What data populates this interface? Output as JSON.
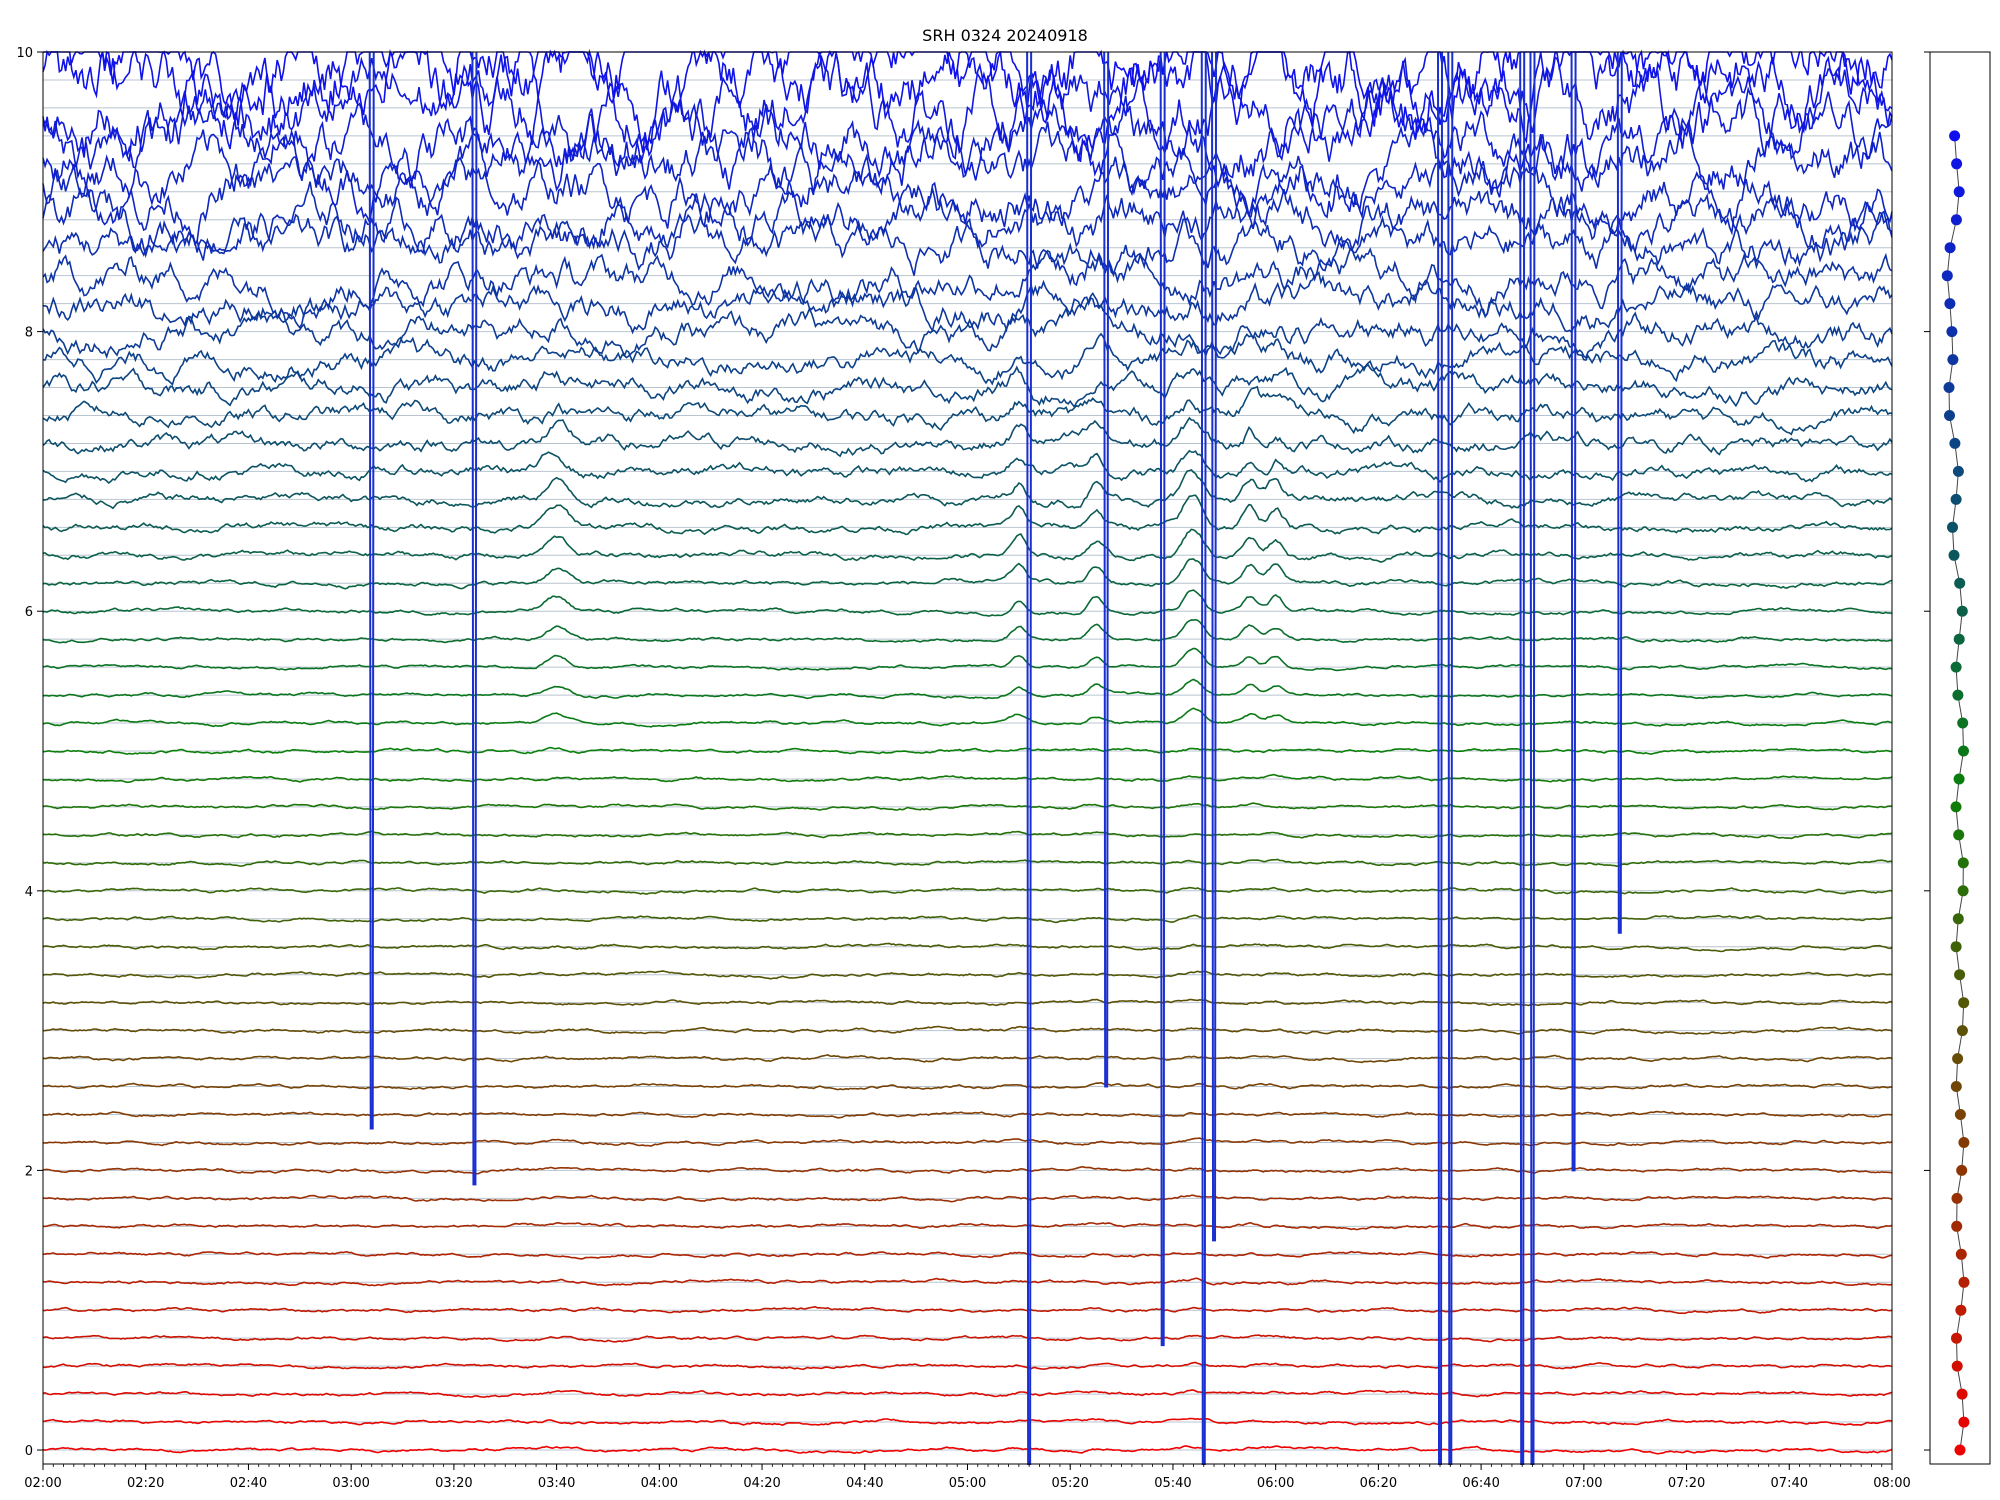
{
  "chart_data": {
    "type": "line",
    "title": "SRH 0324 20240918",
    "xlabel": "",
    "ylabel": "",
    "xlim": [
      "02:00",
      "08:00"
    ],
    "ylim": [
      -0.1,
      10
    ],
    "x_ticks": [
      "02:00",
      "02:20",
      "02:40",
      "03:00",
      "03:20",
      "03:40",
      "04:00",
      "04:20",
      "04:40",
      "05:00",
      "05:20",
      "05:40",
      "06:00",
      "06:20",
      "06:40",
      "07:00",
      "07:20",
      "07:40",
      "08:00"
    ],
    "y_ticks": [
      "0",
      "2",
      "4",
      "6",
      "8",
      "10"
    ],
    "grid": "horizontal lines at channel baselines",
    "legend": "none",
    "n_series": 51,
    "baseline_step": 0.2,
    "color_low": "#ee0000",
    "color_mid": "#0a7f0a",
    "color_high": "#1010ee",
    "major_dips": [
      {
        "time": "03:04",
        "min": 2.3
      },
      {
        "time": "03:24",
        "min": 1.9
      },
      {
        "time": "05:12",
        "min": -0.1
      },
      {
        "time": "05:27",
        "min": 2.6
      },
      {
        "time": "05:38",
        "min": 0.75
      },
      {
        "time": "05:46",
        "min": -0.1
      },
      {
        "time": "05:48",
        "min": 1.5
      },
      {
        "time": "06:32",
        "min": -0.1
      },
      {
        "time": "06:34",
        "min": -0.1
      },
      {
        "time": "06:48",
        "min": -0.1
      },
      {
        "time": "06:50",
        "min": -0.1
      },
      {
        "time": "06:58",
        "min": 2.0
      },
      {
        "time": "07:07",
        "min": 3.7
      }
    ],
    "side_panel": {
      "type": "scatter",
      "values": [
        0.0,
        0.2,
        0.4,
        0.6,
        0.8,
        1.0,
        1.2,
        1.4,
        1.6,
        1.8,
        2.0,
        2.2,
        2.4,
        2.6,
        2.8,
        3.0,
        3.2,
        3.4,
        3.6,
        3.8,
        4.0,
        4.2,
        4.4,
        4.6,
        4.8,
        5.0,
        5.2,
        5.4,
        5.6,
        5.8,
        6.0,
        6.2,
        6.4,
        6.6,
        6.8,
        7.0,
        7.2,
        7.4,
        7.6,
        7.8,
        8.0,
        8.2,
        8.4,
        8.6,
        8.8,
        9.0,
        9.2,
        9.4
      ]
    }
  }
}
